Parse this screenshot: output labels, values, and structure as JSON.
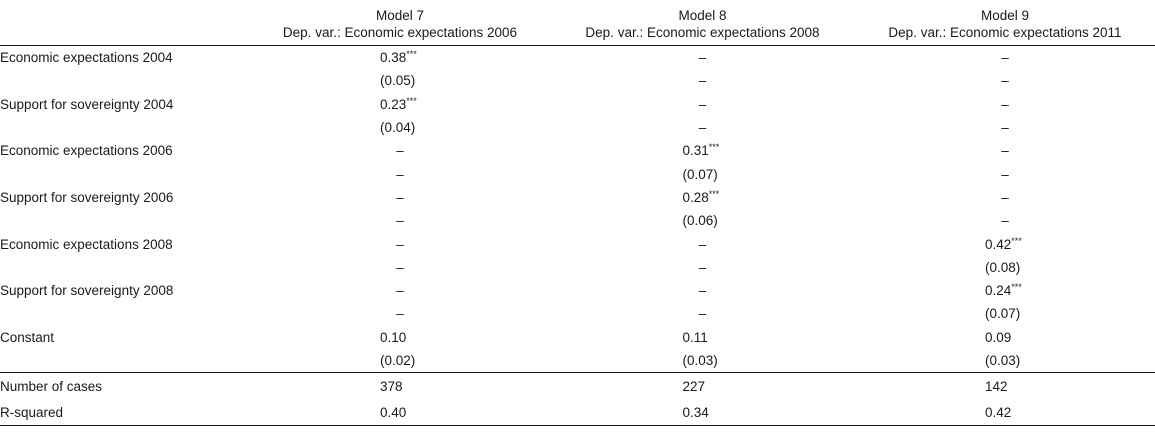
{
  "table": {
    "columns": [
      {
        "model": "Model 7",
        "dep_var": "Dep. var.: Economic expectations 2006"
      },
      {
        "model": "Model 8",
        "dep_var": "Dep. var.: Economic expectations 2008"
      },
      {
        "model": "Model 9",
        "dep_var": "Dep. var.: Economic expectations 2011"
      }
    ],
    "rows": [
      {
        "label": "Economic expectations 2004",
        "cells": [
          "0.38***",
          "–",
          "–"
        ]
      },
      {
        "label": "",
        "cells": [
          "(0.05)",
          "–",
          "–"
        ]
      },
      {
        "label": "Support for sovereignty 2004",
        "cells": [
          "0.23***",
          "–",
          "–"
        ]
      },
      {
        "label": "",
        "cells": [
          "(0.04)",
          "–",
          "–"
        ]
      },
      {
        "label": "Economic expectations 2006",
        "cells": [
          "–",
          "0.31***",
          "–"
        ]
      },
      {
        "label": "",
        "cells": [
          "–",
          "(0.07)",
          "–"
        ]
      },
      {
        "label": "Support for sovereignty 2006",
        "cells": [
          "–",
          "0.28***",
          "–"
        ]
      },
      {
        "label": "",
        "cells": [
          "–",
          "(0.06)",
          "–"
        ]
      },
      {
        "label": "Economic expectations 2008",
        "cells": [
          "–",
          "–",
          "0.42***"
        ]
      },
      {
        "label": "",
        "cells": [
          "–",
          "–",
          "(0.08)"
        ]
      },
      {
        "label": "Support for sovereignty 2008",
        "cells": [
          "–",
          "–",
          "0.24***"
        ]
      },
      {
        "label": "",
        "cells": [
          "–",
          "–",
          "(0.07)"
        ]
      },
      {
        "label": "Constant",
        "cells": [
          "0.10",
          "0.11",
          "0.09"
        ]
      },
      {
        "label": "",
        "cells": [
          "(0.02)",
          "(0.03)",
          "(0.03)"
        ]
      }
    ],
    "stats": [
      {
        "label": "Number of cases",
        "cells": [
          "378",
          "227",
          "142"
        ]
      },
      {
        "label": "R-squared",
        "cells": [
          "0.40",
          "0.34",
          "0.42"
        ]
      }
    ]
  }
}
